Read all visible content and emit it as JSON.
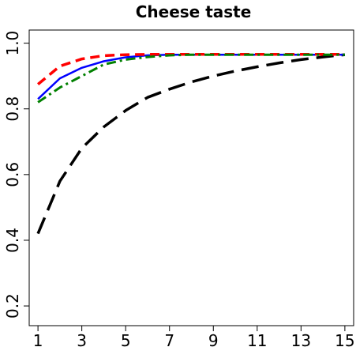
{
  "chart_data": {
    "type": "line",
    "title": "Cheese taste",
    "xlabel": "",
    "ylabel": "",
    "xlim": [
      0.6,
      15.4
    ],
    "ylim": [
      0.14,
      1.04
    ],
    "xticks": [
      1,
      3,
      5,
      7,
      9,
      11,
      13,
      15
    ],
    "yticks": [
      0.2,
      0.4,
      0.6,
      0.8,
      1.0
    ],
    "ytick_labels": [
      "0.2",
      "0.4",
      "0.6",
      "0.8",
      "1.0"
    ],
    "grid": false,
    "x": [
      1,
      2,
      3,
      4,
      5,
      6,
      7,
      8,
      9,
      10,
      11,
      12,
      13,
      14,
      15
    ],
    "series": [
      {
        "color": "#000000",
        "dash": "long-dash",
        "values": [
          0.42,
          0.58,
          0.68,
          0.745,
          0.795,
          0.835,
          0.86,
          0.882,
          0.9,
          0.915,
          0.928,
          0.94,
          0.95,
          0.958,
          0.965
        ]
      },
      {
        "color": "#0000ff",
        "dash": "solid",
        "values": [
          0.83,
          0.893,
          0.925,
          0.945,
          0.957,
          0.963,
          0.965,
          0.965,
          0.965,
          0.965,
          0.965,
          0.965,
          0.965,
          0.965,
          0.965
        ]
      },
      {
        "color": "#ff0000",
        "dash": "dash",
        "values": [
          0.875,
          0.93,
          0.952,
          0.962,
          0.965,
          0.966,
          0.966,
          0.966,
          0.966,
          0.966,
          0.966,
          0.966,
          0.966,
          0.966,
          0.966
        ]
      },
      {
        "color": "#008000",
        "dash": "dash-dot",
        "values": [
          0.82,
          0.865,
          0.9,
          0.935,
          0.95,
          0.958,
          0.963,
          0.965,
          0.965,
          0.965,
          0.965,
          0.965,
          0.965,
          0.965,
          0.965
        ]
      }
    ]
  }
}
